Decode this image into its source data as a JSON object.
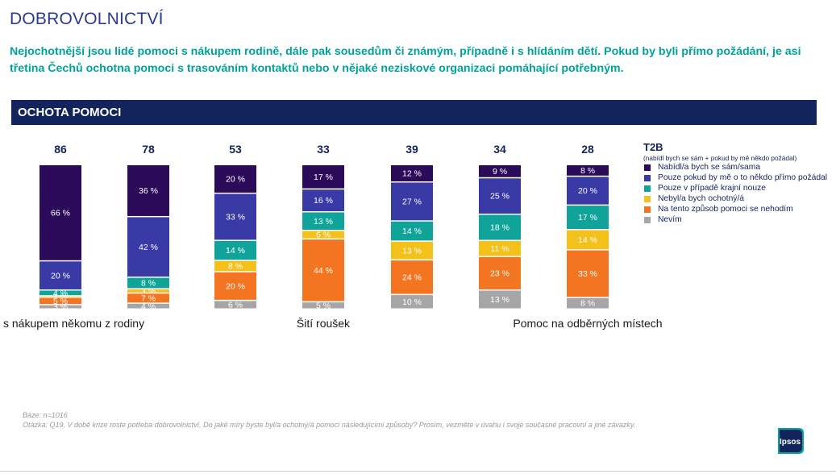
{
  "title": "DOBROVOLNICTVÍ",
  "subtitle": "Nejochotnější jsou lidé pomoci s nákupem rodině, dále pak sousedům či známým, případně i s hlídáním dětí. Pokud by byli přímo požádání, je asi třetina Čechů ochotna pomoci s trasováním kontaktů nebo v nějaké neziskové organizaci pomáhající potřebným.",
  "band_label": "OCHOTA POMOCI",
  "legend": {
    "title": "T2B",
    "subtitle": "(nabídl bych se sám + pokud by mě někdo požádal)",
    "items": [
      {
        "label": "Nabídl/a bych se sám/sama",
        "color": "#2b0a5a"
      },
      {
        "label": "Pouze pokud by mě o to někdo přímo požádal",
        "color": "#3a3aa6"
      },
      {
        "label": "Pouze v případě krajní nouze",
        "color": "#0fa39a"
      },
      {
        "label": "Nebyl/a bych ochotný/á",
        "color": "#f4c01a"
      },
      {
        "label": "Na tento způsob pomoci se nehodím",
        "color": "#f37521"
      },
      {
        "label": "Nevím",
        "color": "#a6a6a6"
      }
    ]
  },
  "chart_data": {
    "type": "bar",
    "stacked": true,
    "normalized_100": true,
    "categories": [
      "s nákupem někomu z rodiny",
      "",
      "",
      "Šití roušek",
      "",
      "",
      "Pomoc na odběrných místech"
    ],
    "t2b": [
      86,
      78,
      53,
      33,
      39,
      34,
      28
    ],
    "series": [
      {
        "name": "Nabídl/a bych se sám/sama",
        "color": "#2b0a5a",
        "values": [
          66,
          36,
          20,
          17,
          12,
          9,
          8
        ]
      },
      {
        "name": "Pouze pokud by mě o to někdo přímo požádal",
        "color": "#3a3aa6",
        "values": [
          20,
          42,
          33,
          16,
          27,
          25,
          20
        ]
      },
      {
        "name": "Pouze v případě krajní nouze",
        "color": "#0fa39a",
        "values": [
          4,
          8,
          14,
          13,
          14,
          18,
          17
        ]
      },
      {
        "name": "Nebyl/a bych ochotný/á",
        "color": "#f4c01a",
        "values": [
          1,
          3,
          8,
          6,
          13,
          11,
          14
        ]
      },
      {
        "name": "Na tento způsob pomoci se nehodím",
        "color": "#f37521",
        "values": [
          5,
          7,
          20,
          44,
          24,
          23,
          33
        ]
      },
      {
        "name": "Nevím",
        "color": "#a6a6a6",
        "values": [
          3,
          4,
          6,
          5,
          10,
          13,
          8
        ]
      }
    ],
    "value_suffix": " %"
  },
  "footer": {
    "base": "Báze: n=1016",
    "question": "Otázka: Q19. V době krize roste potřeba dobrovolnictví. Do jaké míry byste byl/a ochotný/á pomoci následujícími způsoby? Prosím, vezměte v úvahu i svoje současné pracovní a jiné závazky."
  },
  "logo_text": "Ipsos"
}
